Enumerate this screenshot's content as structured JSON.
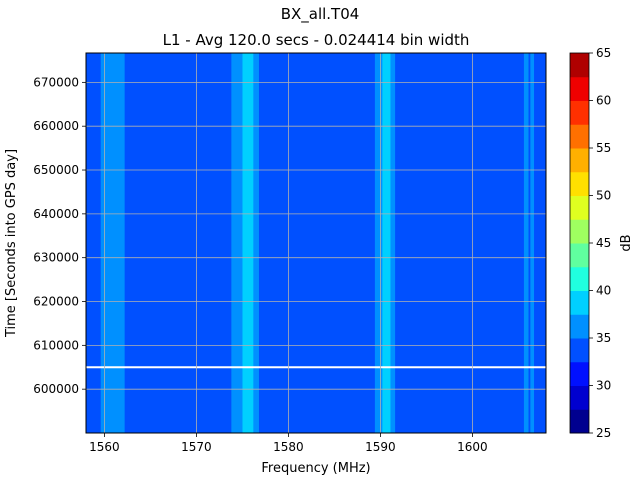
{
  "chart_data": {
    "type": "heatmap",
    "title": "BX_all.T04",
    "subtitle": "L1 - Avg 120.0 secs - 0.024414 bin width",
    "xlabel": "Frequency (MHz)",
    "ylabel": "Time [Seconds into GPS day]",
    "xlim": [
      1558,
      1608
    ],
    "ylim": [
      590000,
      676700
    ],
    "xticks": [
      1560,
      1570,
      1580,
      1590,
      1600
    ],
    "xtick_labels": [
      "1560",
      "1570",
      "1580",
      "1590",
      "1600"
    ],
    "yticks": [
      600000,
      610000,
      620000,
      630000,
      640000,
      650000,
      660000,
      670000
    ],
    "ytick_labels": [
      "600000",
      "610000",
      "620000",
      "630000",
      "640000",
      "650000",
      "660000",
      "670000"
    ],
    "grid": true,
    "colorbar": {
      "label": "dB",
      "min": 25,
      "max": 65,
      "step": 2.5,
      "ticks": [
        25,
        30,
        35,
        40,
        45,
        50,
        55,
        60,
        65
      ],
      "tick_labels": [
        "25",
        "30",
        "35",
        "40",
        "45",
        "50",
        "55",
        "60",
        "65"
      ],
      "colors": [
        "#00008f",
        "#0000cf",
        "#0010ff",
        "#0050ff",
        "#0090ff",
        "#00d0ff",
        "#20ffdf",
        "#60ff9f",
        "#9fff60",
        "#dfff20",
        "#ffe000",
        "#ffb000",
        "#ff7000",
        "#ff3000",
        "#ef0000",
        "#af0000"
      ]
    },
    "background_level_db": 33.5,
    "signal_bands": [
      {
        "from_mhz": 1559.6,
        "to_mhz": 1562.2,
        "level_db": 36
      },
      {
        "from_mhz": 1573.8,
        "to_mhz": 1575.0,
        "level_db": 37
      },
      {
        "from_mhz": 1575.0,
        "to_mhz": 1576.2,
        "level_db": 39
      },
      {
        "from_mhz": 1576.2,
        "to_mhz": 1576.8,
        "level_db": 36.5
      },
      {
        "from_mhz": 1589.4,
        "to_mhz": 1590.2,
        "level_db": 36.5
      },
      {
        "from_mhz": 1590.2,
        "to_mhz": 1591.1,
        "level_db": 38.5
      },
      {
        "from_mhz": 1591.1,
        "to_mhz": 1591.6,
        "level_db": 36.5
      },
      {
        "from_mhz": 1605.6,
        "to_mhz": 1606.1,
        "level_db": 36
      },
      {
        "from_mhz": 1606.3,
        "to_mhz": 1606.7,
        "level_db": 36.5
      }
    ],
    "data_gap_time_s": 605000
  }
}
